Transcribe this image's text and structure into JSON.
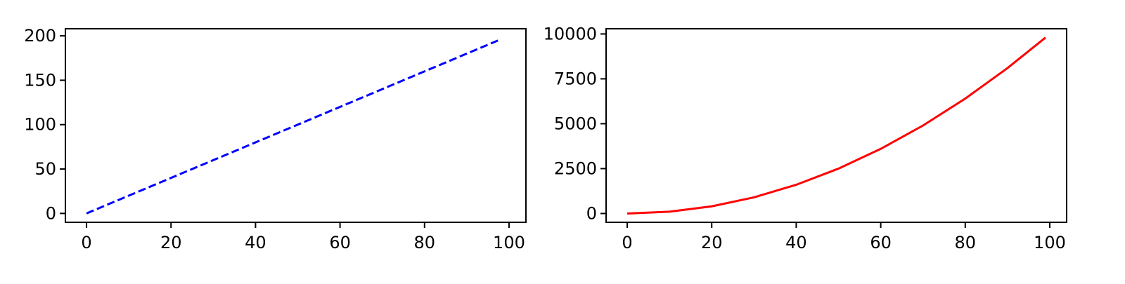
{
  "chart_data": [
    {
      "type": "line",
      "title": "",
      "xlabel": "",
      "ylabel": "",
      "xlim": [
        -5,
        104
      ],
      "ylim": [
        -10,
        208
      ],
      "xticks": [
        0,
        20,
        40,
        60,
        80,
        100
      ],
      "yticks": [
        0,
        50,
        100,
        150,
        200
      ],
      "grid": false,
      "legend": "none",
      "series": [
        {
          "color": "#0000ff",
          "line_style": "dashed",
          "x": [
            0,
            98
          ],
          "y": [
            0,
            196
          ]
        }
      ]
    },
    {
      "type": "line",
      "title": "",
      "xlabel": "",
      "ylabel": "",
      "xlim": [
        -5,
        104
      ],
      "ylim": [
        -490,
        10290
      ],
      "xticks": [
        0,
        20,
        40,
        60,
        80,
        100
      ],
      "yticks": [
        0,
        2500,
        5000,
        7500,
        10000
      ],
      "grid": false,
      "legend": "none",
      "series": [
        {
          "color": "#ff0000",
          "line_style": "solid",
          "x": [
            0,
            10,
            20,
            30,
            40,
            50,
            60,
            70,
            80,
            90,
            99
          ],
          "y": [
            0,
            100,
            400,
            900,
            1600,
            2500,
            3600,
            4900,
            6400,
            8100,
            9801
          ]
        }
      ]
    }
  ]
}
